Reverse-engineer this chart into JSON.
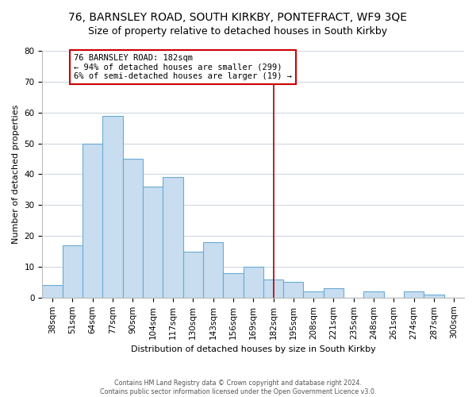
{
  "title1": "76, BARNSLEY ROAD, SOUTH KIRKBY, PONTEFRACT, WF9 3QE",
  "title2": "Size of property relative to detached houses in South Kirkby",
  "xlabel": "Distribution of detached houses by size in South Kirkby",
  "ylabel": "Number of detached properties",
  "footnote1": "Contains HM Land Registry data © Crown copyright and database right 2024.",
  "footnote2": "Contains public sector information licensed under the Open Government Licence v3.0.",
  "bar_labels": [
    "38sqm",
    "51sqm",
    "64sqm",
    "77sqm",
    "90sqm",
    "104sqm",
    "117sqm",
    "130sqm",
    "143sqm",
    "156sqm",
    "169sqm",
    "182sqm",
    "195sqm",
    "208sqm",
    "221sqm",
    "235sqm",
    "248sqm",
    "261sqm",
    "274sqm",
    "287sqm",
    "300sqm"
  ],
  "bar_values": [
    4,
    17,
    50,
    59,
    45,
    36,
    39,
    15,
    18,
    8,
    10,
    6,
    5,
    2,
    3,
    0,
    2,
    0,
    2,
    1,
    0
  ],
  "bar_color": "#c8ddf0",
  "bar_edge_color": "#6aaad4",
  "reference_line_index": 11,
  "reference_line_color": "#aa0000",
  "annotation_title": "76 BARNSLEY ROAD: 182sqm",
  "annotation_line1": "← 94% of detached houses are smaller (299)",
  "annotation_line2": "6% of semi-detached houses are larger (19) →",
  "annotation_box_color": "white",
  "annotation_box_edge": "#cc0000",
  "ylim": [
    0,
    80
  ],
  "yticks": [
    0,
    10,
    20,
    30,
    40,
    50,
    60,
    70,
    80
  ],
  "background_color": "#ffffff",
  "plot_background": "#ffffff",
  "grid_color": "#d0d8e0",
  "title1_fontsize": 10,
  "title2_fontsize": 9,
  "ylabel_fontsize": 8,
  "xlabel_fontsize": 8,
  "tick_fontsize": 7.5,
  "footnote_fontsize": 5.8,
  "footnote_color": "#555555"
}
